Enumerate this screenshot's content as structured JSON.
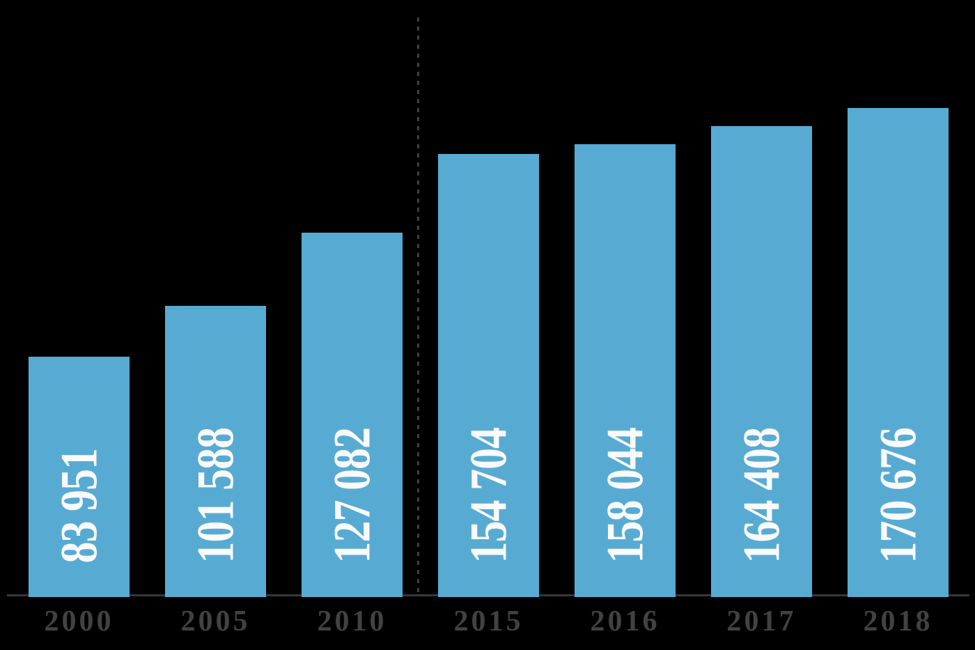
{
  "page": {
    "background": "#000000"
  },
  "chart_data": {
    "type": "bar",
    "title": "",
    "xlabel": "",
    "ylabel": "",
    "categories": [
      "2000",
      "2005",
      "2010",
      "2015",
      "2016",
      "2017",
      "2018"
    ],
    "values": [
      83951,
      101588,
      127082,
      154704,
      158044,
      164408,
      170676
    ],
    "value_labels": [
      "83 951",
      "101 588",
      "127 082",
      "154 704",
      "158 044",
      "164 408",
      "170 676"
    ],
    "ylim": [
      0,
      200000
    ],
    "grid": false,
    "legend": false,
    "y_axis_visible": false,
    "bar_value_label_rotation_deg": 90,
    "divider_between_categories": [
      "2010",
      "2015"
    ],
    "colors": {
      "background": "#000000",
      "bar": "#57abd3",
      "bar_value_label": "#fafafa",
      "axis_line": "#383838",
      "tick_label": "#424242",
      "divider_line": "#3f3f3f"
    }
  }
}
